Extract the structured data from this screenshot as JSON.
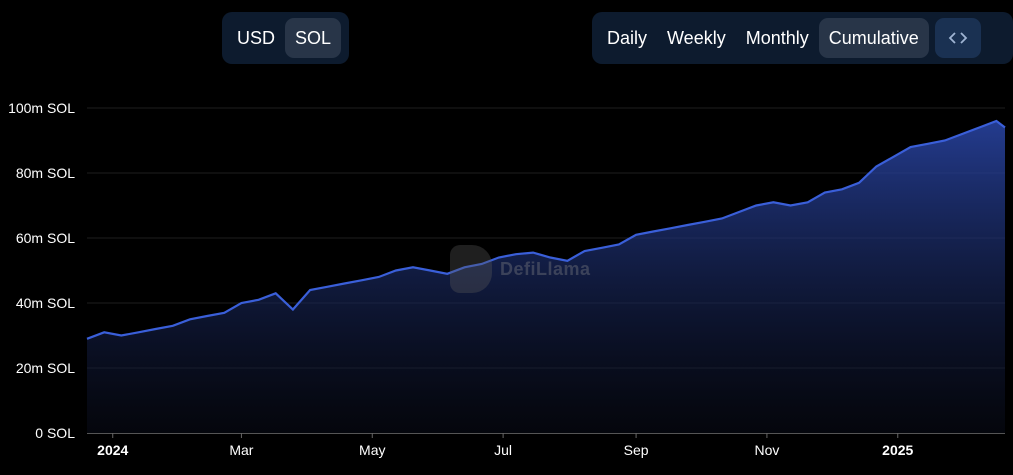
{
  "currency_toggle": {
    "options": [
      "USD",
      "SOL"
    ],
    "selected": "SOL"
  },
  "period_toggle": {
    "options": [
      "Daily",
      "Weekly",
      "Monthly",
      "Cumulative"
    ],
    "selected": "Cumulative"
  },
  "embed_button": {
    "label": "<>",
    "icon": "code-icon"
  },
  "watermark": {
    "text": "DefiLlama"
  },
  "colors": {
    "line": "#3a5fd9",
    "area_top": "#2a46a8",
    "background": "#000000",
    "toggle_bg": "#0d1b2e"
  },
  "chart_data": {
    "type": "area",
    "title": "",
    "unit": "SOL",
    "ylim": [
      0,
      100000000
    ],
    "y_ticks": [
      0,
      20000000,
      40000000,
      60000000,
      80000000,
      100000000
    ],
    "y_tick_labels": [
      "0 SOL",
      "20m SOL",
      "40m SOL",
      "60m SOL",
      "80m SOL",
      "100m SOL"
    ],
    "xlim": [
      "2023-12-20",
      "2025-02-20"
    ],
    "x_ticks": [
      {
        "date": "2024-01-01",
        "label": "2024",
        "bold": true
      },
      {
        "date": "2024-03-01",
        "label": "Mar",
        "bold": false
      },
      {
        "date": "2024-05-01",
        "label": "May",
        "bold": false
      },
      {
        "date": "2024-07-01",
        "label": "Jul",
        "bold": false
      },
      {
        "date": "2024-09-01",
        "label": "Sep",
        "bold": false
      },
      {
        "date": "2024-11-01",
        "label": "Nov",
        "bold": false
      },
      {
        "date": "2025-01-01",
        "label": "2025",
        "bold": true
      }
    ],
    "grid": true,
    "series": [
      {
        "x": [
          "2023-12-20",
          "2023-12-28",
          "2024-01-05",
          "2024-01-13",
          "2024-01-21",
          "2024-01-29",
          "2024-02-06",
          "2024-02-14",
          "2024-02-22",
          "2024-03-01",
          "2024-03-09",
          "2024-03-17",
          "2024-03-25",
          "2024-04-02",
          "2024-04-10",
          "2024-04-18",
          "2024-04-26",
          "2024-05-04",
          "2024-05-12",
          "2024-05-20",
          "2024-05-28",
          "2024-06-05",
          "2024-06-13",
          "2024-06-21",
          "2024-06-29",
          "2024-07-07",
          "2024-07-15",
          "2024-07-23",
          "2024-07-31",
          "2024-08-08",
          "2024-08-16",
          "2024-08-24",
          "2024-09-01",
          "2024-09-09",
          "2024-09-17",
          "2024-09-25",
          "2024-10-03",
          "2024-10-11",
          "2024-10-19",
          "2024-10-27",
          "2024-11-04",
          "2024-11-12",
          "2024-11-20",
          "2024-11-28",
          "2024-12-06",
          "2024-12-14",
          "2024-12-22",
          "2024-12-30",
          "2025-01-07",
          "2025-01-15",
          "2025-01-23",
          "2025-01-31",
          "2025-02-08",
          "2025-02-16",
          "2025-02-20"
        ],
        "values": [
          29000000,
          31000000,
          30000000,
          31000000,
          32000000,
          33000000,
          35000000,
          36000000,
          37000000,
          40000000,
          41000000,
          43000000,
          38000000,
          44000000,
          45000000,
          46000000,
          47000000,
          48000000,
          50000000,
          51000000,
          50000000,
          49000000,
          51000000,
          52000000,
          54000000,
          55000000,
          55500000,
          54000000,
          53000000,
          56000000,
          57000000,
          58000000,
          61000000,
          62000000,
          63000000,
          64000000,
          65000000,
          66000000,
          68000000,
          70000000,
          71000000,
          70000000,
          71000000,
          74000000,
          75000000,
          77000000,
          82000000,
          85000000,
          88000000,
          89000000,
          90000000,
          92000000,
          94000000,
          96000000,
          94000000
        ]
      }
    ]
  }
}
